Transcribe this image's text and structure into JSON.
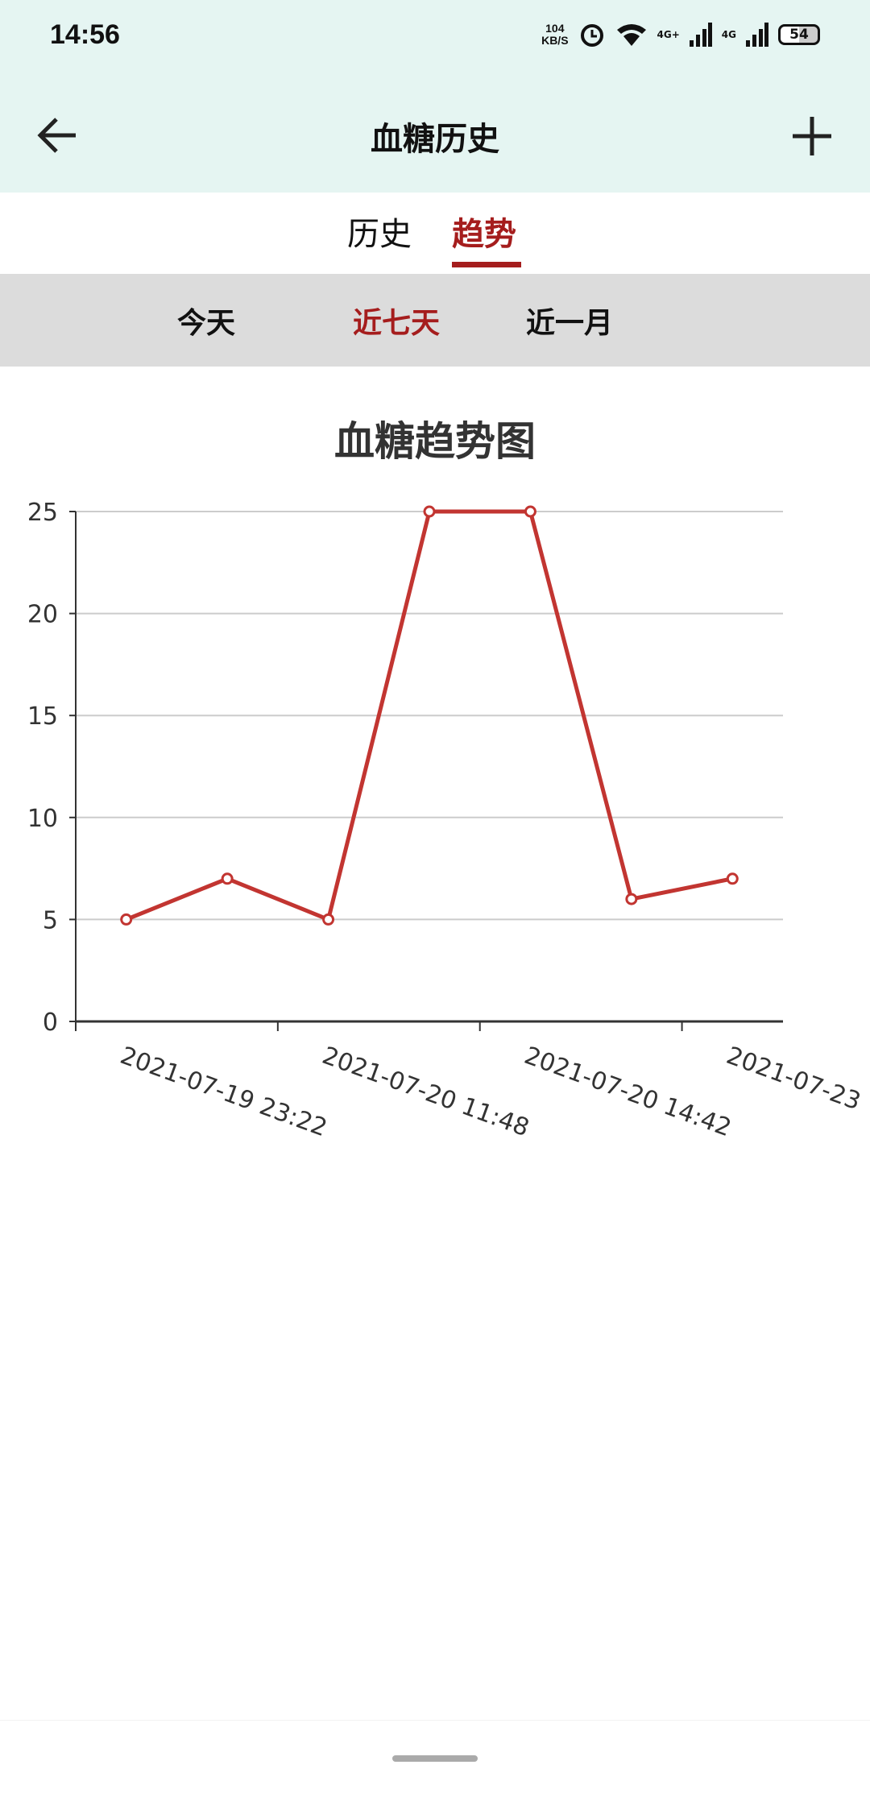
{
  "status_bar": {
    "time": "14:56",
    "speed_value": "104",
    "speed_unit": "KB/S",
    "net1": "4G+",
    "net2": "4G",
    "battery": "54"
  },
  "header": {
    "title": "血糖历史",
    "back_icon": "arrow-left-icon",
    "add_icon": "plus-icon"
  },
  "tabs": [
    {
      "label": "历史",
      "active": false
    },
    {
      "label": "趋势",
      "active": true
    }
  ],
  "ranges": [
    {
      "label": "今天",
      "active": false
    },
    {
      "label": "近七天",
      "active": true
    },
    {
      "label": "近一月",
      "active": false
    }
  ],
  "colors": {
    "accent": "#a51d1d",
    "line": "#c23531",
    "header_bg": "#e5f5f2",
    "range_bg": "#dcdcdc"
  },
  "chart_data": {
    "type": "line",
    "title": "血糖趋势图",
    "categories": [
      "2021-07-19 23:22",
      "",
      "2021-07-20 11:48",
      "",
      "2021-07-20 14:42",
      "",
      "2021-07-23"
    ],
    "values": [
      5,
      7,
      5,
      25,
      25,
      6,
      7
    ],
    "ylim": [
      0,
      25
    ],
    "yticks": [
      "0",
      "5",
      "10",
      "15",
      "20",
      "25"
    ],
    "grid": true,
    "legend": "none"
  }
}
